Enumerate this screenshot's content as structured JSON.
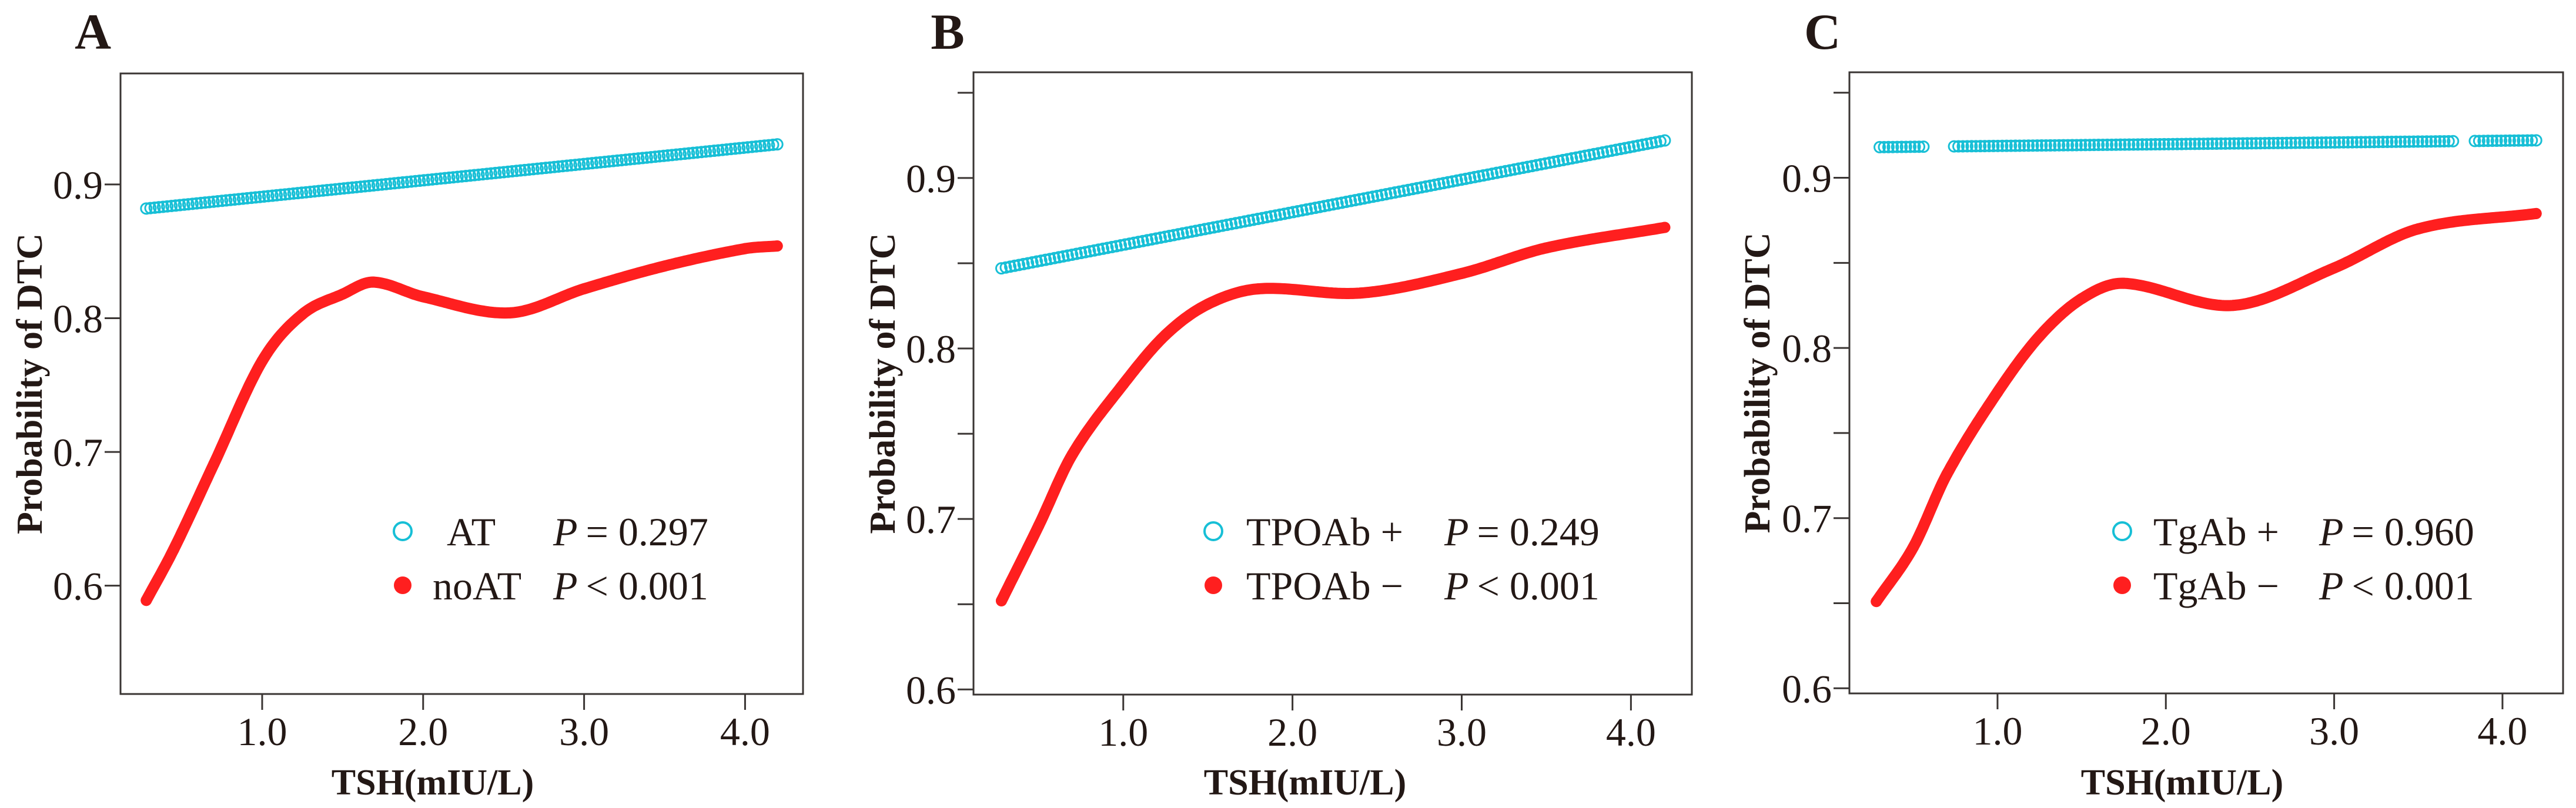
{
  "chart_data": [
    {
      "panel": "A",
      "type": "scatter",
      "xlabel": "TSH(mIU/L)",
      "ylabel": "Probability of DTC",
      "xlim": [
        0.12,
        4.36
      ],
      "ylim": [
        0.519,
        0.983
      ],
      "xticks": [
        1.0,
        2.0,
        3.0,
        4.0
      ],
      "xtick_labels": [
        "1.0",
        "2.0",
        "3.0",
        "4.0"
      ],
      "yticks": [
        0.6,
        0.7,
        0.8,
        0.9
      ],
      "ytick_labels": [
        "0.6",
        "0.7",
        "0.8",
        "0.9"
      ],
      "yminor": [],
      "grid": false,
      "legend_position": "bottom-right",
      "series": [
        {
          "name": "AT",
          "p_symbol": "P",
          "p_text": "= 0.297",
          "color": "#17bfd6",
          "marker": "open-circle",
          "x": [
            0.28,
            4.2
          ],
          "y": [
            0.882,
            0.93
          ]
        },
        {
          "name": "noAT",
          "p_symbol": "P",
          "p_text": "< 0.001",
          "color": "#ff1f1f",
          "marker": "filled-circle",
          "x": [
            0.28,
            0.45,
            0.7,
            1.0,
            1.25,
            1.5,
            1.69,
            2.0,
            2.54,
            3.0,
            3.5,
            4.0,
            4.2
          ],
          "y": [
            0.589,
            0.627,
            0.691,
            0.768,
            0.803,
            0.818,
            0.827,
            0.816,
            0.804,
            0.822,
            0.839,
            0.852,
            0.854
          ]
        }
      ]
    },
    {
      "panel": "B",
      "type": "scatter",
      "xlabel": "TSH(mIU/L)",
      "ylabel": "Probability of DTC",
      "xlim": [
        0.115,
        4.36
      ],
      "ylim": [
        0.597,
        0.962
      ],
      "xticks": [
        1.0,
        2.0,
        3.0,
        4.0
      ],
      "xtick_labels": [
        "1.0",
        "2.0",
        "3.0",
        "4.0"
      ],
      "yticks": [
        0.6,
        0.7,
        0.8,
        0.9
      ],
      "ytick_labels": [
        "0.6",
        "0.7",
        "0.8",
        "0.9"
      ],
      "yminor": [
        0.65,
        0.75,
        0.85,
        0.95
      ],
      "grid": false,
      "legend_position": "bottom-right",
      "series": [
        {
          "name": "TPOAb +",
          "p_symbol": "P",
          "p_text": "= 0.249",
          "color": "#17bfd6",
          "marker": "open-circle",
          "x": [
            0.28,
            4.2
          ],
          "y": [
            0.847,
            0.922
          ]
        },
        {
          "name": "TPOAb −",
          "p_symbol": "P",
          "p_text": "< 0.001",
          "color": "#ff1f1f",
          "marker": "filled-circle",
          "x": [
            0.28,
            0.5,
            0.7,
            1.0,
            1.25,
            1.5,
            1.8,
            2.4,
            3.0,
            3.5,
            4.2
          ],
          "y": [
            0.652,
            0.696,
            0.738,
            0.779,
            0.808,
            0.826,
            0.835,
            0.8325,
            0.844,
            0.859,
            0.871
          ]
        }
      ]
    },
    {
      "panel": "C",
      "type": "scatter",
      "xlabel": "TSH(mIU/L)",
      "ylabel": "Probability of DTC",
      "xlim": [
        0.12,
        4.36
      ],
      "ylim": [
        0.597,
        0.962
      ],
      "xticks": [
        1.0,
        2.0,
        3.0,
        4.0
      ],
      "xtick_labels": [
        "1.0",
        "2.0",
        "3.0",
        "4.0"
      ],
      "yticks": [
        0.6,
        0.7,
        0.8,
        0.9
      ],
      "ytick_labels": [
        "0.6",
        "0.7",
        "0.8",
        "0.9"
      ],
      "yminor": [
        0.65,
        0.75,
        0.85,
        0.95
      ],
      "grid": false,
      "legend_position": "bottom-right",
      "series": [
        {
          "name": "TgAb +",
          "p_symbol": "P",
          "p_text": "= 0.960",
          "color": "#17bfd6",
          "marker": "open-circle",
          "x": [
            0.3,
            4.2
          ],
          "y": [
            0.918,
            0.922
          ]
        },
        {
          "name": "TgAb −",
          "p_symbol": "P",
          "p_text": "< 0.001",
          "color": "#ff1f1f",
          "marker": "filled-circle",
          "x": [
            0.28,
            0.5,
            0.7,
            1.0,
            1.25,
            1.5,
            1.75,
            2.4,
            3.0,
            3.5,
            4.2
          ],
          "y": [
            0.651,
            0.683,
            0.726,
            0.774,
            0.807,
            0.829,
            0.838,
            0.825,
            0.847,
            0.87,
            0.879
          ]
        }
      ]
    }
  ]
}
